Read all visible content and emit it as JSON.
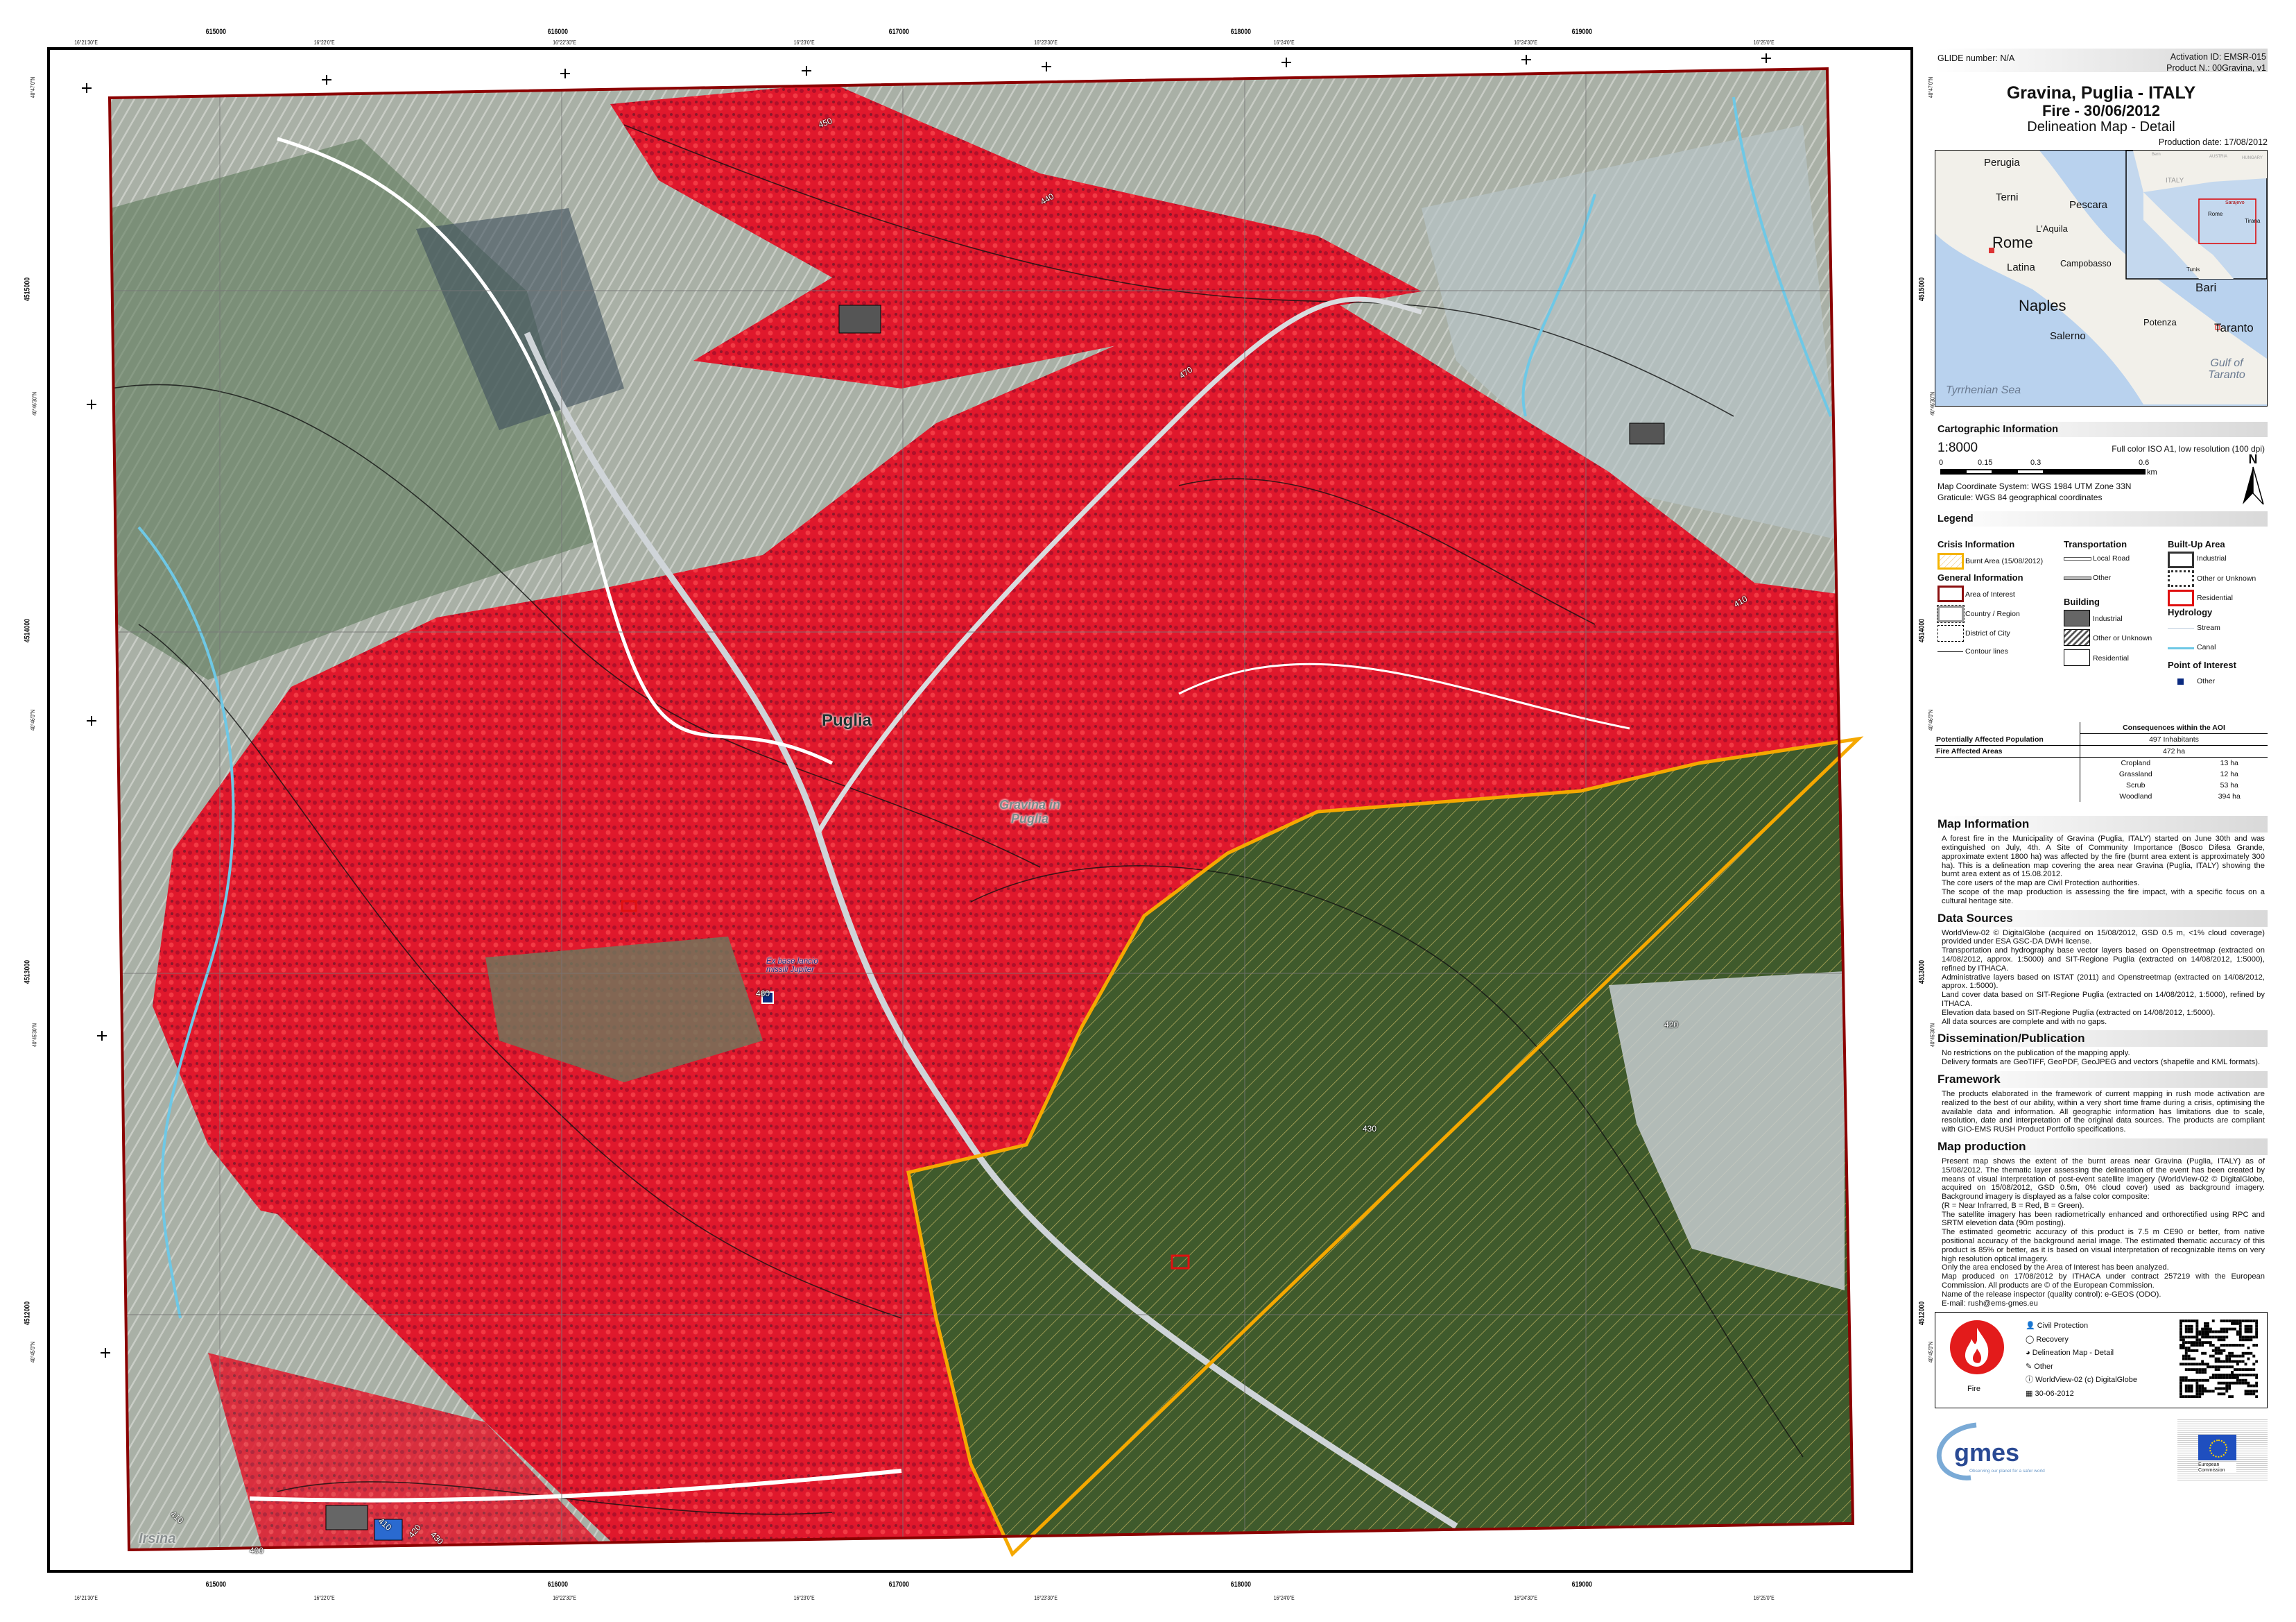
{
  "header": {
    "glide": "GLIDE number: N/A",
    "activation_id": "Activation ID: EMSR-015",
    "product_n": "Product N.: 00Gravina, v1",
    "title": "Gravina, Puglia - ITALY",
    "event": "Fire - 30/06/2012",
    "map_type": "Delineation Map - Detail",
    "production_date": "Production date: 17/08/2012"
  },
  "inset_map": {
    "places": [
      "Perugia",
      "Terni",
      "Pescara",
      "L'Aquila",
      "Rome",
      "Latina",
      "Campobasso",
      "Naples",
      "Salerno",
      "Bari",
      "Potenza",
      "Taranto"
    ],
    "seas": [
      "Tyrrhenian Sea",
      "Gulf of Taranto"
    ],
    "overview_places": [
      "ITALY",
      "Rome",
      "Tunis",
      "Tirana",
      "Sarajevo",
      "AUSTRIA",
      "HUNGARY",
      "Bern"
    ]
  },
  "cartographic": {
    "heading": "Cartographic Information",
    "scale": "1:8000",
    "format": "Full color ISO A1, low resolution (100 dpi)",
    "scalebar_ticks": [
      "0",
      "0.15",
      "0.3",
      "0.6"
    ],
    "scalebar_unit": "km",
    "north": "N",
    "coord_system": "Map Coordinate System: WGS 1984 UTM Zone 33N",
    "graticule": "Graticule: WGS 84 geographical coordinates"
  },
  "legend": {
    "heading": "Legend",
    "crisis": {
      "title": "Crisis Information",
      "burnt": "Burnt Area (15/08/2012)"
    },
    "general": {
      "title": "General Information",
      "aoi": "Area of Interest",
      "country": "Country / Region",
      "district": "District of City",
      "contour": "Contour lines"
    },
    "transport": {
      "title": "Transportation",
      "local": "Local Road",
      "other": "Other"
    },
    "building": {
      "title": "Building",
      "industrial": "Industrial",
      "other": "Other or Unknown",
      "residential": "Residential"
    },
    "builtup": {
      "title": "Built-Up Area",
      "industrial": "Industrial",
      "other": "Other or Unknown",
      "residential": "Residential"
    },
    "hydro": {
      "title": "Hydrology",
      "stream": "Stream",
      "canal": "Canal"
    },
    "poi": {
      "title": "Point of Interest",
      "other": "Other"
    }
  },
  "consequences": {
    "header": "Consequences within the AOI",
    "population_label": "Potentially Affected Population",
    "population_value": "497 Inhabitants",
    "fire_label": "Fire Affected Areas",
    "fire_value": "472 ha",
    "breakdown": [
      {
        "class": "Cropland",
        "value": "13 ha"
      },
      {
        "class": "Grassland",
        "value": "12 ha"
      },
      {
        "class": "Scrub",
        "value": "53 ha"
      },
      {
        "class": "Woodland",
        "value": "394 ha"
      }
    ]
  },
  "map_information": {
    "heading": "Map Information",
    "lines": [
      "A forest fire in the Municipality of Gravina (Puglia, ITALY) started on June 30th and was extinguished on July, 4th. A Site of Community Importance (Bosco Difesa Grande, approximate extent 1800 ha) was affected by the fire (burnt area extent is approximately 300 ha). This is a delineation map covering the area near Gravina (Puglia, ITALY) showing the burnt area extent as of 15.08.2012.",
      "The core users of the map are Civil Protection authorities.",
      "The scope of the map production is assessing the fire impact, with a specific focus on a cultural heritage site."
    ]
  },
  "data_sources": {
    "heading": "Data Sources",
    "lines": [
      "WorldView-02 © DigitalGlobe (acquired on 15/08/2012, GSD 0.5 m, <1% cloud coverage) provided under ESA GSC-DA DWH license.",
      "Transportation and hydrography base vector layers based on Openstreetmap (extracted on 14/08/2012, approx. 1:5000) and SIT-Regione Puglia (extracted on 14/08/2012, 1:5000), refined by ITHACA.",
      "Administrative layers based on ISTAT (2011) and Openstreetmap (extracted on 14/08/2012, approx. 1:5000).",
      "Land cover data based on SIT-Regione Puglia (extracted on 14/08/2012, 1:5000), refined by ITHACA.",
      "Elevation data based on SIT-Regione Puglia (extracted on 14/08/2012, 1:5000).",
      "All data sources are complete and with no gaps."
    ]
  },
  "dissemination": {
    "heading": "Dissemination/Publication",
    "lines": [
      "No restrictions on the publication of the mapping apply.",
      "Delivery formats are GeoTIFF, GeoPDF, GeoJPEG and vectors (shapefile and KML formats)."
    ]
  },
  "framework": {
    "heading": "Framework",
    "lines": [
      "The products elaborated in the framework of current mapping in rush mode activation are realized to the best of our ability, within a very short time frame during a crisis, optimising the available data and information. All geographic information has limitations due to scale, resolution, date and interpretation of the original data sources. The products are compliant with GIO-EMS RUSH Product Portfolio specifications."
    ]
  },
  "map_production": {
    "heading": "Map production",
    "lines": [
      "Present map shows the extent of the burnt areas near Gravina (Puglia, ITALY) as of 15/08/2012. The thematic layer assessing the delineation of the event has been created by means of visual interpretation of post-event satellite imagery (WorldView-02 © DigitalGlobe, acquired on 15/08/2012, GSD 0.5m, 0% cloud cover) used as background imagery. Background imagery is displayed as a false color composite:",
      "(R = Near Infrarred, B = Red, B = Green).",
      "The satellite imagery has been radiometrically enhanced and orthorectified using RPC and SRTM elevetion data (90m posting).",
      "The estimated geometric accuracy of this product is 7.5 m CE90 or better, from native positional accuracy of the background aerial image. The estimated thematic accuracy of this product is 85% or better, as it is based on visual interpretation of recognizable items on very high resolution optical imagery.",
      "Only the area enclosed by the Area of Interest has been analyzed.",
      "Map produced on 17/08/2012 by ITHACA under contract 257219 with the European Commission. All products are © of the European Commission.",
      "Name of the release inspector (quality control): e-GEOS (ODO).",
      "E-mail: rush@ems-gmes.eu"
    ]
  },
  "footer": {
    "hazard_label": "Fire",
    "items": [
      {
        "icon": "user-icon",
        "label": "Civil Protection"
      },
      {
        "icon": "ring-icon",
        "label": "Recovery"
      },
      {
        "icon": "globe-icon",
        "label": "Delineation Map - Detail"
      },
      {
        "icon": "wrench-icon",
        "label": "Other"
      },
      {
        "icon": "info-icon",
        "label": "WorldView-02 (c) DigitalGlobe"
      },
      {
        "icon": "calendar-icon",
        "label": "30-06-2012"
      }
    ],
    "gmes_logo": "GMES",
    "gmes_tagline": "Observing our planet for a safer world",
    "ec_logo": "European Commission"
  },
  "map": {
    "utm_eastings": [
      "615000",
      "616000",
      "617000",
      "618000",
      "619000"
    ],
    "longitudes": [
      "16°21'30\"E",
      "16°22'0\"E",
      "16°22'30\"E",
      "16°23'0\"E",
      "16°23'30\"E",
      "16°24'0\"E",
      "16°24'30\"E",
      "16°25'0\"E"
    ],
    "utm_northings": [
      "4515000",
      "4514000",
      "4513000",
      "4512000"
    ],
    "latitudes": [
      "40°47'0\"N",
      "40°46'30\"N",
      "40°46'0\"N",
      "40°45'30\"N",
      "40°45'0\"N"
    ],
    "place_labels": {
      "puglia": "Puglia",
      "gravina": "Gravina in Puglia",
      "irsina": "Irsina",
      "poi": "Ex base lancio missili Jupiter"
    },
    "contour_labels": [
      "410",
      "400",
      "410",
      "420",
      "430",
      "460",
      "450",
      "440",
      "470",
      "430",
      "420",
      "410"
    ]
  },
  "colors": {
    "burnt_outline": "#f5a800",
    "aoi_outline": "#8b0000",
    "vegetation_red": "#e0182c",
    "canal": "#6ec8e6",
    "poi": "#0a2a80",
    "hazard_red": "#e31b1b"
  }
}
